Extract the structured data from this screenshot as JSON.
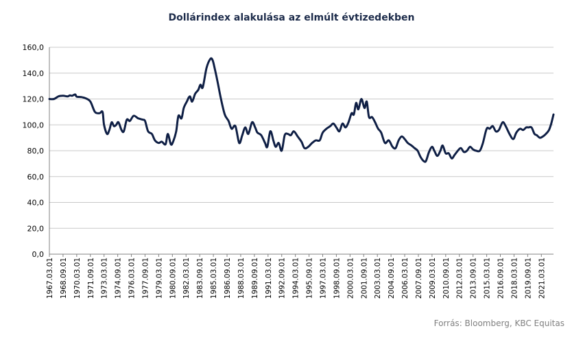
{
  "chart_data": {
    "type": "line",
    "title": "Dollárindex alakulása az elmúlt évtizedekben",
    "source": "Forrás: Bloomberg, KBC Equitas",
    "xlabel": "",
    "ylabel": "",
    "ylim": [
      0,
      160
    ],
    "yticks": [
      "0,0",
      "20,0",
      "40,0",
      "60,0",
      "80,0",
      "100,0",
      "120,0",
      "140,0",
      "160,0"
    ],
    "xticks": [
      "1967.03.01",
      "1968.09.01",
      "1970.03.01",
      "1971.09.01",
      "1973.03.01",
      "1974.09.01",
      "1976.03.01",
      "1977.09.01",
      "1979.03.01",
      "1980.09.01",
      "1982.03.01",
      "1983.09.01",
      "1985.03.01",
      "1986.09.01",
      "1988.03.01",
      "1989.09.01",
      "1991.03.01",
      "1992.09.01",
      "1994.03.01",
      "1995.09.01",
      "1997.03.01",
      "1998.09.01",
      "2000.03.01",
      "2001.09.01",
      "2003.03.01",
      "2004.09.01",
      "2006.03.01",
      "2007.09.01",
      "2009.03.01",
      "2010.09.01",
      "2012.03.01",
      "2013.09.01",
      "2015.03.01",
      "2016.09.01",
      "2018.03.01",
      "2019.09.01",
      "2021.03.01"
    ],
    "grid": true,
    "legend": "none",
    "line_color": "#0f1f45",
    "series": [
      {
        "points": [
          [
            "1967-03",
            120
          ],
          [
            "1967-09",
            120
          ],
          [
            "1968-03",
            122
          ],
          [
            "1968-09",
            122.5
          ],
          [
            "1969-03",
            122
          ],
          [
            "1969-06",
            122.8
          ],
          [
            "1969-09",
            122.5
          ],
          [
            "1970-01",
            123.5
          ],
          [
            "1970-03",
            121.8
          ],
          [
            "1970-09",
            121.5
          ],
          [
            "1971-03",
            120.5
          ],
          [
            "1971-09",
            118
          ],
          [
            "1972-03",
            110
          ],
          [
            "1972-09",
            109
          ],
          [
            "1973-01",
            110
          ],
          [
            "1973-03",
            100
          ],
          [
            "1973-07",
            93
          ],
          [
            "1973-10",
            96
          ],
          [
            "1974-01",
            102
          ],
          [
            "1974-04",
            99
          ],
          [
            "1974-07",
            100
          ],
          [
            "1974-10",
            102
          ],
          [
            "1975-02",
            96
          ],
          [
            "1975-05",
            95
          ],
          [
            "1975-09",
            104
          ],
          [
            "1976-01",
            103
          ],
          [
            "1976-06",
            107
          ],
          [
            "1976-12",
            105
          ],
          [
            "1977-06",
            104
          ],
          [
            "1977-09",
            103
          ],
          [
            "1978-01",
            95
          ],
          [
            "1978-06",
            93
          ],
          [
            "1978-10",
            88
          ],
          [
            "1979-03",
            86
          ],
          [
            "1979-07",
            87
          ],
          [
            "1979-12",
            85
          ],
          [
            "1980-03",
            93
          ],
          [
            "1980-07",
            85
          ],
          [
            "1980-10",
            87
          ],
          [
            "1981-02",
            95
          ],
          [
            "1981-05",
            107
          ],
          [
            "1981-09",
            105
          ],
          [
            "1981-12",
            113
          ],
          [
            "1982-04",
            118
          ],
          [
            "1982-08",
            122
          ],
          [
            "1982-11",
            118
          ],
          [
            "1983-03",
            124
          ],
          [
            "1983-07",
            127
          ],
          [
            "1983-10",
            131
          ],
          [
            "1984-01",
            129
          ],
          [
            "1984-06",
            144
          ],
          [
            "1984-11",
            151
          ],
          [
            "1985-02",
            150
          ],
          [
            "1985-05",
            143
          ],
          [
            "1985-09",
            132
          ],
          [
            "1986-01",
            120
          ],
          [
            "1986-06",
            108
          ],
          [
            "1986-11",
            103
          ],
          [
            "1987-03",
            97
          ],
          [
            "1987-08",
            99
          ],
          [
            "1988-01",
            86
          ],
          [
            "1988-05",
            92
          ],
          [
            "1988-09",
            98
          ],
          [
            "1989-01",
            93
          ],
          [
            "1989-06",
            102
          ],
          [
            "1989-10",
            98
          ],
          [
            "1990-01",
            94
          ],
          [
            "1990-06",
            92
          ],
          [
            "1990-11",
            86
          ],
          [
            "1991-02",
            83
          ],
          [
            "1991-06",
            95
          ],
          [
            "1991-10",
            88
          ],
          [
            "1992-01",
            83
          ],
          [
            "1992-05",
            86
          ],
          [
            "1992-09",
            80
          ],
          [
            "1993-01",
            92
          ],
          [
            "1993-05",
            93
          ],
          [
            "1993-09",
            92
          ],
          [
            "1994-01",
            95
          ],
          [
            "1994-06",
            91
          ],
          [
            "1994-11",
            87
          ],
          [
            "1995-03",
            82
          ],
          [
            "1995-08",
            83
          ],
          [
            "1996-01",
            86
          ],
          [
            "1996-06",
            88
          ],
          [
            "1996-11",
            88
          ],
          [
            "1997-03",
            94
          ],
          [
            "1997-08",
            97
          ],
          [
            "1998-01",
            99
          ],
          [
            "1998-05",
            101
          ],
          [
            "1998-09",
            98
          ],
          [
            "1999-01",
            95
          ],
          [
            "1999-05",
            101
          ],
          [
            "1999-09",
            98
          ],
          [
            "2000-01",
            102
          ],
          [
            "2000-05",
            109
          ],
          [
            "2000-08",
            108
          ],
          [
            "2000-11",
            117
          ],
          [
            "2001-02",
            112
          ],
          [
            "2001-06",
            120
          ],
          [
            "2001-10",
            113
          ],
          [
            "2002-01",
            118
          ],
          [
            "2002-04",
            106
          ],
          [
            "2002-08",
            106
          ],
          [
            "2002-12",
            102
          ],
          [
            "2003-04",
            97
          ],
          [
            "2003-08",
            94
          ],
          [
            "2004-01",
            86
          ],
          [
            "2004-06",
            88
          ],
          [
            "2004-11",
            83
          ],
          [
            "2005-03",
            82
          ],
          [
            "2005-07",
            88
          ],
          [
            "2005-11",
            91
          ],
          [
            "2006-03",
            89
          ],
          [
            "2006-07",
            86
          ],
          [
            "2006-12",
            84
          ],
          [
            "2007-04",
            82
          ],
          [
            "2007-08",
            80
          ],
          [
            "2007-12",
            75
          ],
          [
            "2008-04",
            72
          ],
          [
            "2008-07",
            72
          ],
          [
            "2008-11",
            79
          ],
          [
            "2009-03",
            83
          ],
          [
            "2009-06",
            80
          ],
          [
            "2009-10",
            76
          ],
          [
            "2010-02",
            80
          ],
          [
            "2010-05",
            84
          ],
          [
            "2010-09",
            78
          ],
          [
            "2011-01",
            78
          ],
          [
            "2011-05",
            74
          ],
          [
            "2011-09",
            77
          ],
          [
            "2012-01",
            80
          ],
          [
            "2012-05",
            82
          ],
          [
            "2012-09",
            79
          ],
          [
            "2013-01",
            80
          ],
          [
            "2013-05",
            83
          ],
          [
            "2013-09",
            81
          ],
          [
            "2014-01",
            80
          ],
          [
            "2014-06",
            80
          ],
          [
            "2014-10",
            86
          ],
          [
            "2015-03",
            97
          ],
          [
            "2015-07",
            97
          ],
          [
            "2015-11",
            99
          ],
          [
            "2016-03",
            95
          ],
          [
            "2016-07",
            96
          ],
          [
            "2016-12",
            102
          ],
          [
            "2017-04",
            99
          ],
          [
            "2017-09",
            93
          ],
          [
            "2018-02",
            89
          ],
          [
            "2018-06",
            94
          ],
          [
            "2018-11",
            97
          ],
          [
            "2019-03",
            96
          ],
          [
            "2019-07",
            98
          ],
          [
            "2019-10",
            98
          ],
          [
            "2020-02",
            98
          ],
          [
            "2020-06",
            93
          ],
          [
            "2020-09",
            92
          ],
          [
            "2021-01",
            90
          ],
          [
            "2021-05",
            91
          ],
          [
            "2021-09",
            93
          ],
          [
            "2022-01",
            96
          ],
          [
            "2022-04",
            101
          ],
          [
            "2022-07",
            108
          ]
        ]
      }
    ]
  }
}
